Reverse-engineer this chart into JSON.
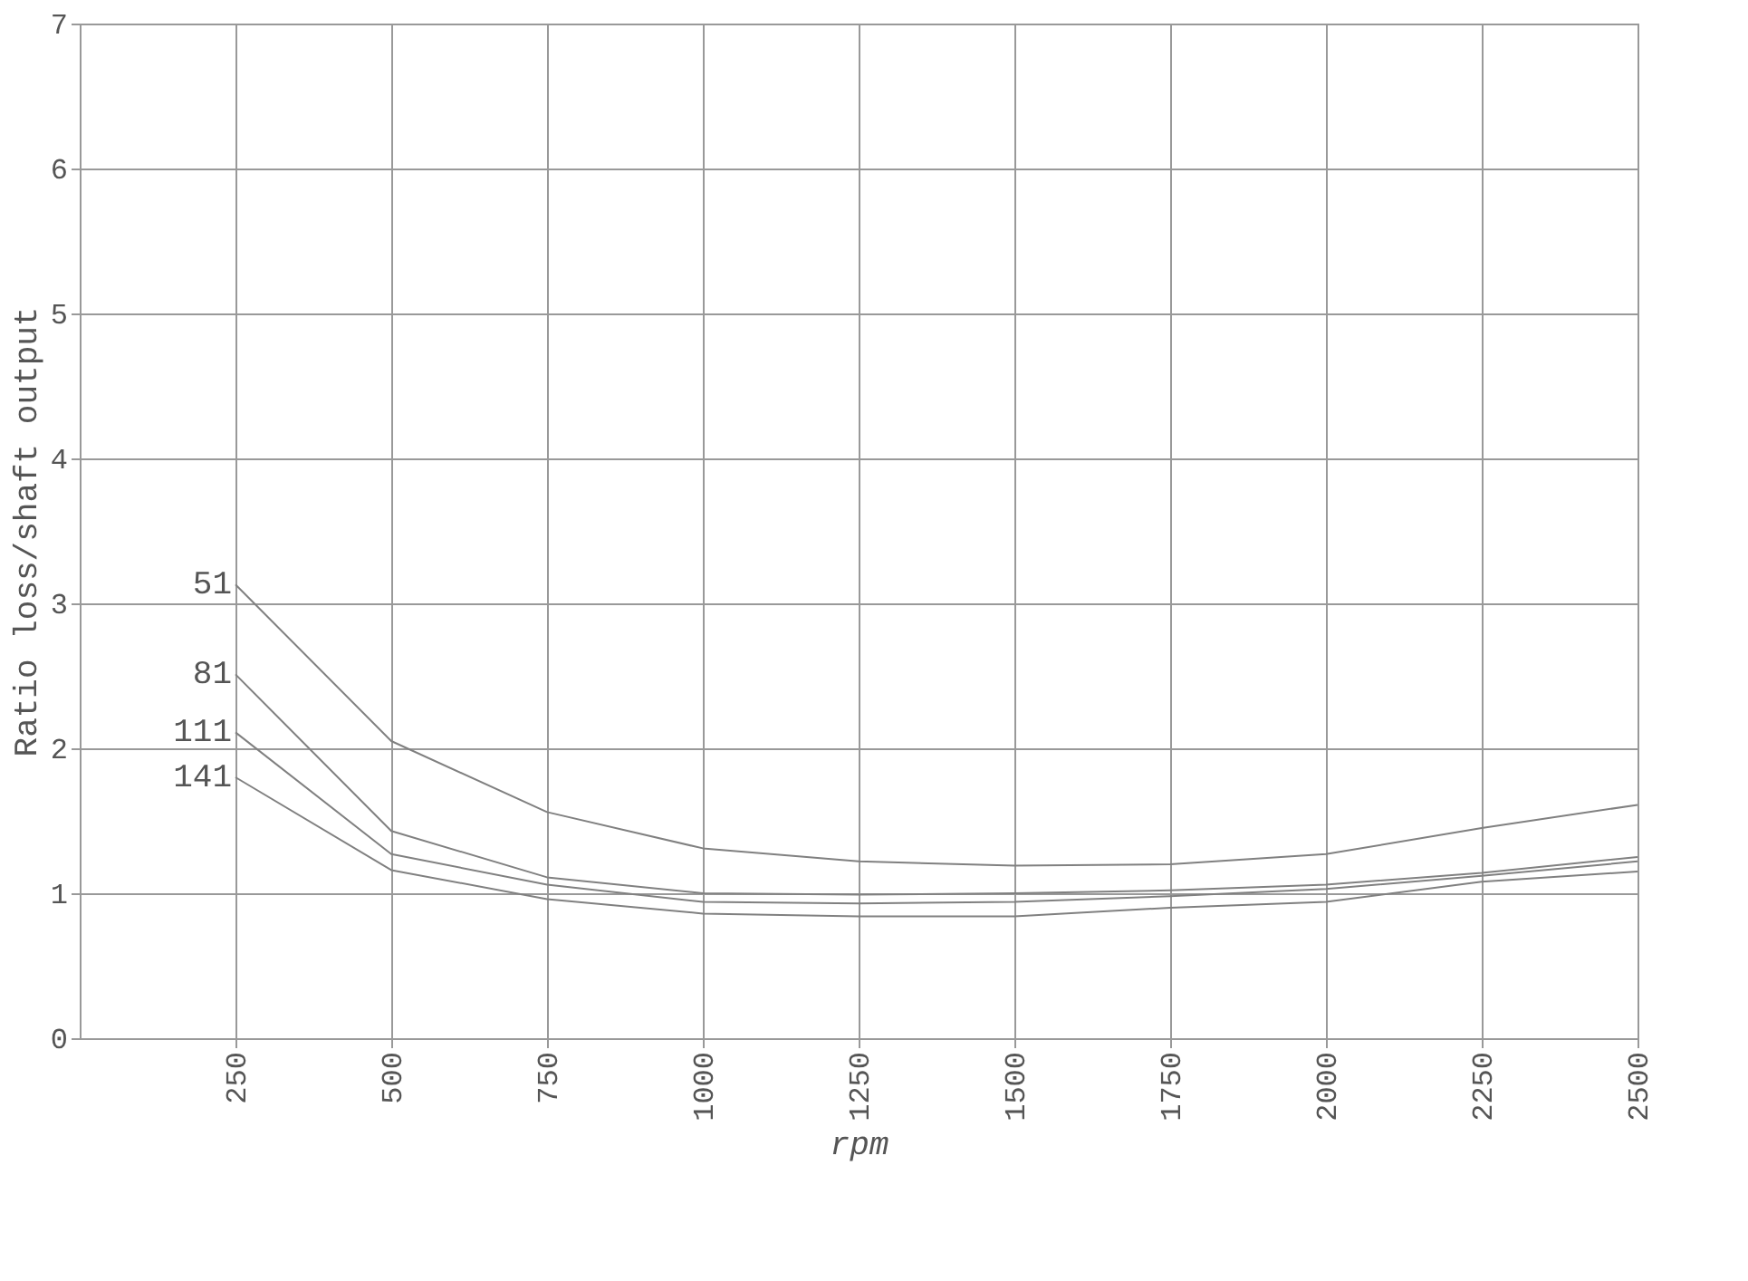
{
  "chart_data": {
    "type": "line",
    "xlabel": "rpm",
    "ylabel": "Ratio loss/shaft output",
    "x": [
      250,
      500,
      750,
      1000,
      1250,
      1500,
      1750,
      2000,
      2250,
      2500
    ],
    "series": [
      {
        "name": "51",
        "color": "#808080",
        "values": [
          3.13,
          2.05,
          1.56,
          1.31,
          1.22,
          1.19,
          1.2,
          1.27,
          1.45,
          1.61
        ]
      },
      {
        "name": "81",
        "color": "#808080",
        "values": [
          2.51,
          1.43,
          1.11,
          1.0,
          0.99,
          1.0,
          1.02,
          1.06,
          1.14,
          1.25
        ]
      },
      {
        "name": "111",
        "color": "#808080",
        "values": [
          2.11,
          1.27,
          1.06,
          0.94,
          0.93,
          0.94,
          0.98,
          1.03,
          1.12,
          1.22
        ]
      },
      {
        "name": "141",
        "color": "#808080",
        "values": [
          1.8,
          1.16,
          0.96,
          0.86,
          0.84,
          0.84,
          0.9,
          0.94,
          1.08,
          1.15
        ]
      }
    ],
    "xlim": [
      0,
      2500
    ],
    "xticks": [
      250,
      500,
      750,
      1000,
      1250,
      1500,
      1750,
      2000,
      2250,
      2500
    ],
    "ylim": [
      0,
      7
    ],
    "yticks": [
      0,
      1,
      2,
      3,
      4,
      5,
      6,
      7
    ],
    "grid": true,
    "legend": false,
    "marker": "none",
    "line_style": "solid"
  }
}
